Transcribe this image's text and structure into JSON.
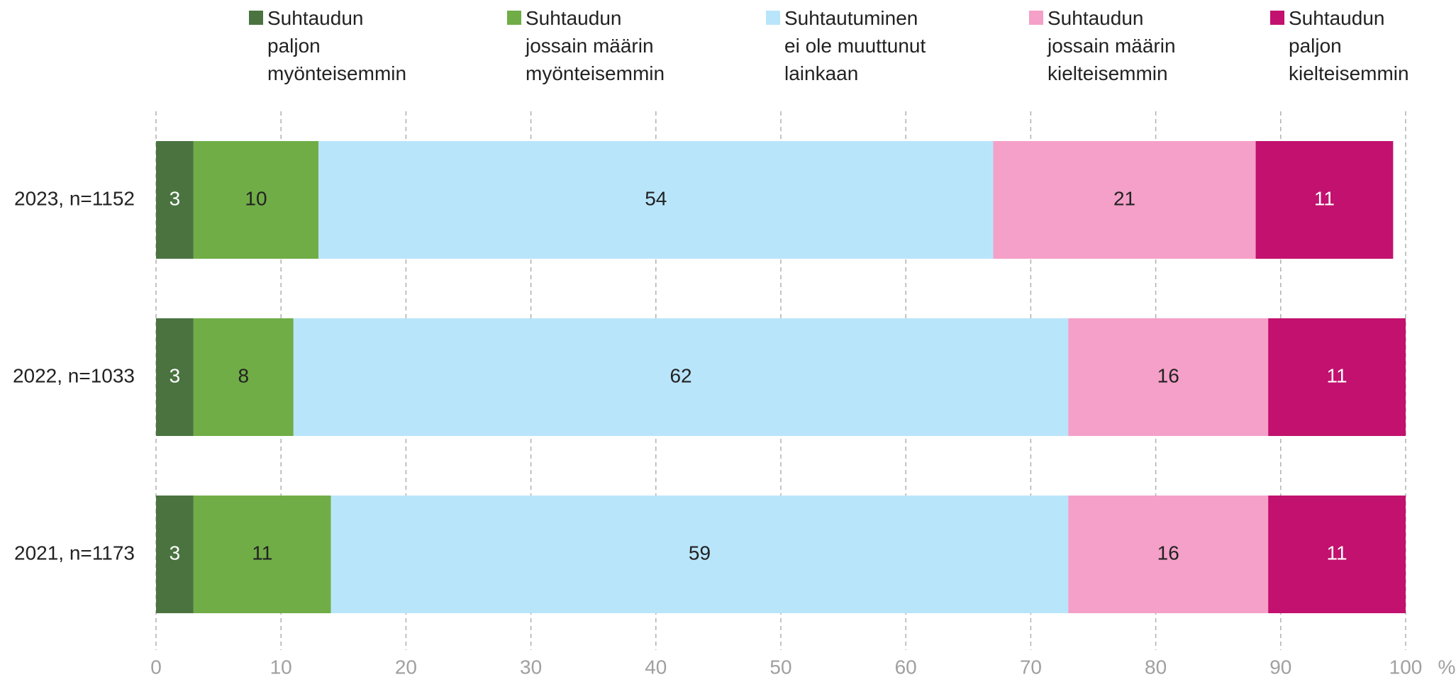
{
  "chart_data": {
    "type": "stacked-bar-horizontal",
    "categories": [
      "2023, n=1152",
      "2022, n=1033",
      "2021, n=1173"
    ],
    "series": [
      {
        "name": "Suhtaudun paljon myönteisemmin",
        "color": "#4a7340",
        "label_color": "#ffffff",
        "values": [
          3,
          3,
          3
        ]
      },
      {
        "name": "Suhtaudun jossain määrin myönteisemmin",
        "color": "#70ad47",
        "label_color": "#222222",
        "values": [
          10,
          8,
          11
        ]
      },
      {
        "name": "Suhtautuminen ei ole muuttunut lainkaan",
        "color": "#b9e5fb",
        "label_color": "#222222",
        "values": [
          54,
          62,
          59
        ]
      },
      {
        "name": "Suhtaudun jossain määrin kielteisemmin",
        "color": "#f4a0c8",
        "label_color": "#222222",
        "values": [
          21,
          16,
          16
        ]
      },
      {
        "name": "Suhtaudun paljon kielteisemmin",
        "color": "#c2116e",
        "label_color": "#ffffff",
        "values": [
          11,
          11,
          11
        ]
      }
    ],
    "xlabel": "%",
    "xlim": [
      0,
      100
    ],
    "xticks": [
      0,
      10,
      20,
      30,
      40,
      50,
      60,
      70,
      80,
      90,
      100
    ],
    "grid": true,
    "legend": "top"
  }
}
